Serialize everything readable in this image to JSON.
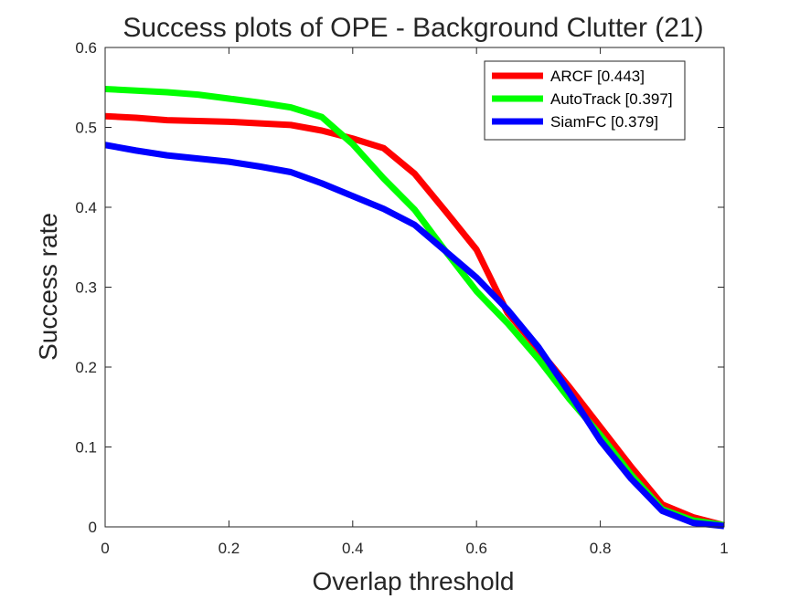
{
  "chart_data": {
    "type": "line",
    "title": "Success plots of OPE - Background Clutter (21)",
    "xlabel": "Overlap threshold",
    "ylabel": "Success rate",
    "xlim": [
      0,
      1
    ],
    "ylim": [
      0,
      0.6
    ],
    "xticks": [
      0,
      0.2,
      0.4,
      0.6,
      0.8,
      1
    ],
    "xtick_labels": [
      "0",
      "0.2",
      "0.4",
      "0.6",
      "0.8",
      "1"
    ],
    "yticks": [
      0,
      0.1,
      0.2,
      0.3,
      0.4,
      0.5,
      0.6
    ],
    "ytick_labels": [
      "0",
      "0.1",
      "0.2",
      "0.3",
      "0.4",
      "0.5",
      "0.6"
    ],
    "grid": false,
    "legend_position": "top-right",
    "x": [
      0,
      0.05,
      0.1,
      0.15,
      0.2,
      0.25,
      0.3,
      0.35,
      0.4,
      0.45,
      0.5,
      0.55,
      0.6,
      0.65,
      0.7,
      0.75,
      0.8,
      0.85,
      0.9,
      0.95,
      1
    ],
    "series": [
      {
        "name": "ARCF [0.443]",
        "color": "#ff0000",
        "values": [
          0.514,
          0.512,
          0.509,
          0.508,
          0.507,
          0.505,
          0.503,
          0.496,
          0.486,
          0.474,
          0.442,
          0.395,
          0.347,
          0.268,
          0.222,
          0.175,
          0.125,
          0.075,
          0.028,
          0.012,
          0.002
        ]
      },
      {
        "name": "AutoTrack [0.397]",
        "color": "#00ff00",
        "values": [
          0.548,
          0.546,
          0.544,
          0.541,
          0.536,
          0.531,
          0.525,
          0.513,
          0.479,
          0.436,
          0.397,
          0.345,
          0.295,
          0.255,
          0.21,
          0.16,
          0.115,
          0.065,
          0.022,
          0.008,
          0.002
        ]
      },
      {
        "name": "SiamFC [0.379]",
        "color": "#0000ff",
        "values": [
          0.478,
          0.471,
          0.465,
          0.461,
          0.457,
          0.451,
          0.444,
          0.43,
          0.414,
          0.398,
          0.378,
          0.345,
          0.312,
          0.272,
          0.225,
          0.168,
          0.108,
          0.06,
          0.02,
          0.005,
          0.001
        ]
      }
    ]
  }
}
